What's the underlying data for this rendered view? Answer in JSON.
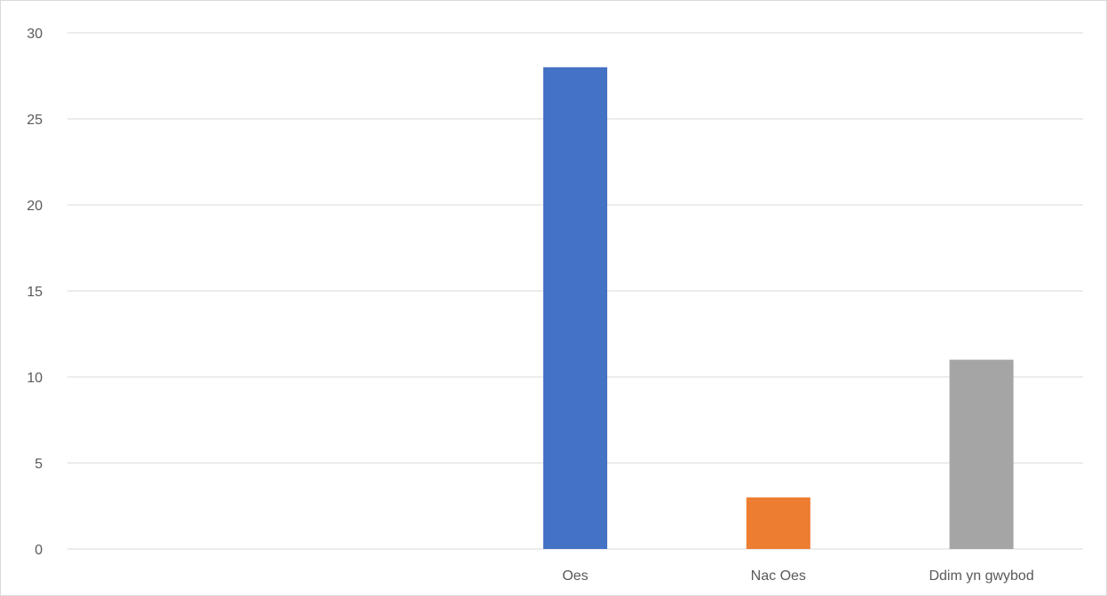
{
  "chart_data": {
    "type": "bar",
    "title": "",
    "xlabel": "",
    "ylabel": "",
    "categories": [
      "",
      "",
      "Oes",
      "Nac Oes",
      "Ddim yn gwybod"
    ],
    "values": [
      null,
      null,
      28,
      3,
      11
    ],
    "colors": [
      "#4472C4",
      "#4472C4",
      "#4472C4",
      "#ED7D31",
      "#A5A5A5"
    ],
    "ylim": [
      0,
      30
    ],
    "yticks": [
      0,
      5,
      10,
      15,
      20,
      25,
      30
    ],
    "grid": true,
    "legend": "none"
  }
}
